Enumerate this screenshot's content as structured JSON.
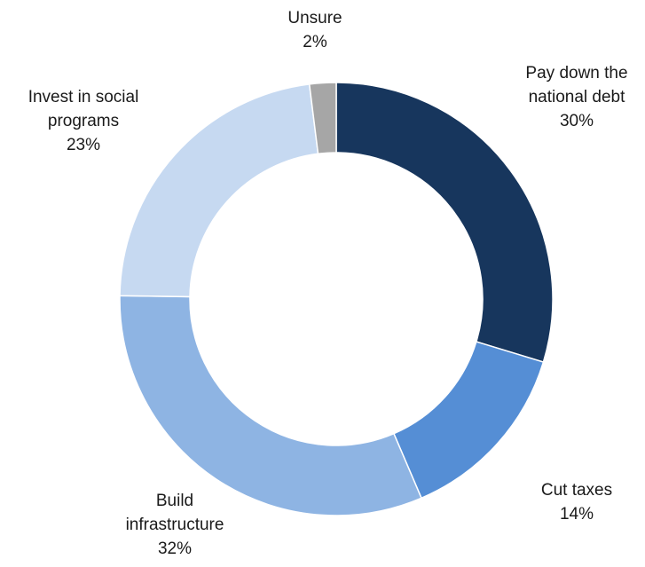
{
  "chart_data": {
    "type": "pie",
    "variant": "donut",
    "title": "",
    "slices": [
      {
        "label": [
          "Pay down the",
          "national debt"
        ],
        "value": 30,
        "display": "30%",
        "color": "#17365d"
      },
      {
        "label": [
          "Cut taxes"
        ],
        "value": 14,
        "display": "14%",
        "color": "#558ed5"
      },
      {
        "label": [
          "Build",
          "infrastructure"
        ],
        "value": 32,
        "display": "32%",
        "color": "#8eb4e3"
      },
      {
        "label": [
          "Invest in social",
          "programs"
        ],
        "value": 23,
        "display": "23%",
        "color": "#c6d9f1"
      },
      {
        "label": [
          "Unsure"
        ],
        "value": 2,
        "display": "2%",
        "color": "#a6a6a6"
      }
    ]
  }
}
